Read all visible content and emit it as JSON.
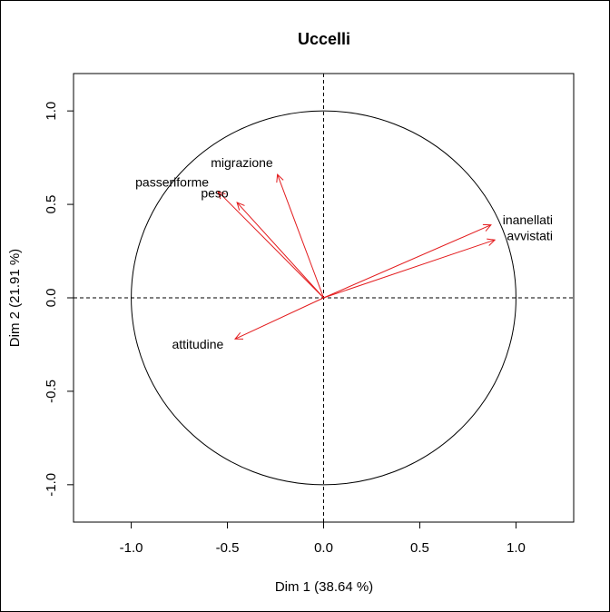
{
  "chart_data": {
    "type": "scatter",
    "title": "Uccelli",
    "xlabel": "Dim 1 (38.64 %)",
    "ylabel": "Dim 2 (21.91 %)",
    "xlim": [
      -1.3,
      1.3
    ],
    "ylim": [
      -1.2,
      1.2
    ],
    "x_ticks": [
      "-1.0",
      "-0.5",
      "0.0",
      "0.5",
      "1.0"
    ],
    "y_ticks": [
      "-1.0",
      "-0.5",
      "0.0",
      "0.5",
      "1.0"
    ],
    "unit_circle": true,
    "grid": false,
    "reference_lines": [
      0,
      0
    ],
    "arrow_color": "#e31a1c",
    "vectors": [
      {
        "label": "migrazione",
        "x": -0.24,
        "y": 0.66
      },
      {
        "label": "passeriforme",
        "x": -0.55,
        "y": 0.57
      },
      {
        "label": "peso",
        "x": -0.45,
        "y": 0.51
      },
      {
        "label": "inanellati",
        "x": 0.87,
        "y": 0.39
      },
      {
        "label": "avvistati",
        "x": 0.89,
        "y": 0.31
      },
      {
        "label": "attitudine",
        "x": -0.46,
        "y": -0.22
      }
    ]
  }
}
